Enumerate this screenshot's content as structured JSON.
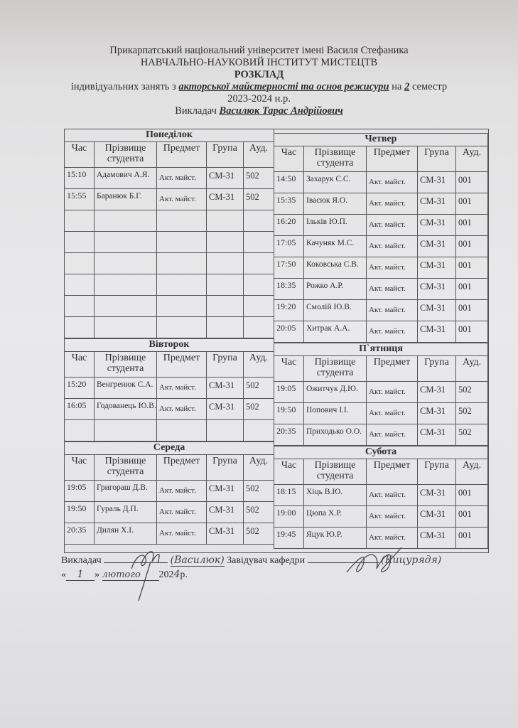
{
  "header": {
    "university": "Прикарпатський національний університет імені Василя Стефаника",
    "institute": "НАВЧАЛЬНО-НАУКОВИЙ ІНСТИТУТ МИСТЕЦТВ",
    "title": "РОЗКЛАД",
    "subtitle_prefix": "індивідуальних занять з",
    "subject": "акторської майстерності та основ режисури",
    "subtitle_on": "на",
    "semester": "2",
    "subtitle_suffix": "семестр",
    "year": "2023-2024 н.р.",
    "teacher_label": "Викладач",
    "teacher_name": "Василюк Тарас Андрійович"
  },
  "columns": [
    "Час",
    "Прізвище студента",
    "Предмет",
    "Група",
    "Ауд."
  ],
  "left_days": [
    {
      "name": "Понеділок",
      "empty_rows": 6,
      "rows": [
        [
          "15:10",
          "Адамович А.Я.",
          "Акт. майст.",
          "СМ-31",
          "502"
        ],
        [
          "15:55",
          "Баранюк Б.Г.",
          "Акт. майст.",
          "СМ-31",
          "502"
        ]
      ]
    },
    {
      "name": "Вівторок",
      "empty_rows": 1,
      "rows": [
        [
          "15:20",
          "Венгренюк С.А.",
          "Акт. майст.",
          "СМ-31",
          "502"
        ],
        [
          "16:05",
          "Годованець Ю.В.",
          "Акт. майст.",
          "СМ-31",
          "502"
        ]
      ]
    },
    {
      "name": "Середа",
      "empty_rows": 0,
      "rows": [
        [
          "19:05",
          "Григораш Д.В.",
          "Акт. майст.",
          "СМ-31",
          "502"
        ],
        [
          "19:50",
          "Гураль Д.П.",
          "Акт. майст.",
          "СМ-31",
          "502"
        ],
        [
          "20:35",
          "Дилян Х.І.",
          "Акт. майст.",
          "СМ-31",
          "502"
        ]
      ]
    }
  ],
  "right_days": [
    {
      "name": "Четвер",
      "empty_rows": 0,
      "rows": [
        [
          "14:50",
          "Захарук С.С.",
          "Акт. майст.",
          "СМ-31",
          "001"
        ],
        [
          "15:35",
          "Івасюк Я.О.",
          "Акт. майст.",
          "СМ-31",
          "001"
        ],
        [
          "16:20",
          "Ільків Ю.П.",
          "Акт. майст.",
          "СМ-31",
          "001"
        ],
        [
          "17:05",
          "Качуняк М.С.",
          "Акт. майст.",
          "СМ-31",
          "001"
        ],
        [
          "17:50",
          "Коковська С.В.",
          "Акт. майст.",
          "СМ-31",
          "001"
        ],
        [
          "18:35",
          "Рожко А.Р.",
          "Акт. майст.",
          "СМ-31",
          "001"
        ],
        [
          "19:20",
          "Смолій Ю.В.",
          "Акт. майст.",
          "СМ-31",
          "001"
        ],
        [
          "20:05",
          "Хитрак А.А.",
          "Акт. майст.",
          "СМ-31",
          "001"
        ]
      ]
    },
    {
      "name": "П`ятниця",
      "empty_rows": 0,
      "rows": [
        [
          "19:05",
          "Ожитчук Д.Ю.",
          "Акт. майст.",
          "СМ-31",
          "502"
        ],
        [
          "19:50",
          "Попович І.І.",
          "Акт. майст.",
          "СМ-31",
          "502"
        ],
        [
          "20:35",
          "Приходько О.О.",
          "Акт. майст.",
          "СМ-31",
          "502"
        ]
      ]
    },
    {
      "name": "Субота",
      "empty_rows": 0,
      "rows": [
        [
          "18:15",
          "Хіць В.Ю.",
          "Акт. майст.",
          "СМ-31",
          "001"
        ],
        [
          "19:00",
          "Цюпа Х.Р.",
          "Акт. майст.",
          "СМ-31",
          "001"
        ],
        [
          "19:45",
          "Яцук Ю.Р.",
          "Акт. майст.",
          "СМ-31",
          "001"
        ]
      ]
    }
  ],
  "signatures": {
    "teacher_label": "Викладач",
    "teacher_name_handwritten": "(Василюк)",
    "head_label": "Завідувач кафедри",
    "head_name_handwritten": "(Кицурядя)",
    "date_open_quote": "«",
    "date_day": "1",
    "date_close_quote": "»",
    "date_month": "лютого",
    "date_year_prefix": "202",
    "date_year_digit": "4",
    "date_year_suffix": "р."
  }
}
